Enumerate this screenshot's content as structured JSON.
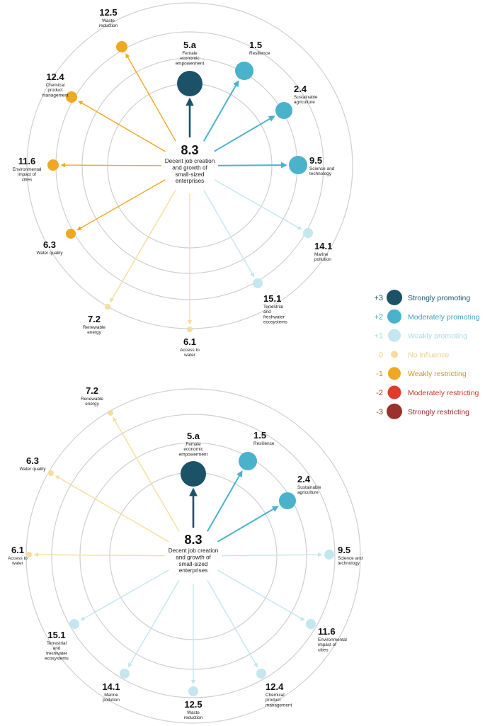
{
  "colors": {
    "ring": "#cfcfcf",
    "+3": "#1c5268",
    "+2": "#4ab2cb",
    "+1": "#c4e6ef",
    "0": "#f4de9e",
    "-1": "#efa822",
    "-2": "#e23a2a",
    "-3": "#9b312c"
  },
  "legend": [
    {
      "value": "+3",
      "label": "Strongly promoting",
      "color": "#1c5268",
      "text_color": "#1c5268"
    },
    {
      "value": "+2",
      "label": "Moderately promoting",
      "color": "#4ab2cb",
      "text_color": "#3aa3bd"
    },
    {
      "value": "+1",
      "label": "Weakly promoting",
      "color": "#c4e6ef",
      "text_color": "#a8dbe8"
    },
    {
      "value": "0",
      "label": "No influence",
      "color": "#f4de9e",
      "text_color": "#ecd08a"
    },
    {
      "value": "-1",
      "label": "Weakly restricting",
      "color": "#efa822",
      "text_color": "#d89416"
    },
    {
      "value": "-2",
      "label": "Moderately restricting",
      "color": "#e23a2a",
      "text_color": "#c9362a"
    },
    {
      "value": "-3",
      "label": "Strongly restricting",
      "color": "#9b312c",
      "text_color": "#8f2f2b"
    }
  ],
  "diagrams": [
    {
      "center": {
        "code": "8.3",
        "label": [
          "Decent job creation",
          "and growth of",
          "small-sized",
          "enterprises"
        ]
      },
      "targets": [
        {
          "code": "5.a",
          "label": [
            "Female",
            "economic",
            "empowerment"
          ],
          "score": 3
        },
        {
          "code": "1.5",
          "label": [
            "Resilience"
          ],
          "score": 2
        },
        {
          "code": "2.4",
          "label": [
            "Sustainable",
            "agriculture"
          ],
          "score": 2
        },
        {
          "code": "9.5",
          "label": [
            "Science and",
            "technology"
          ],
          "score": 2
        },
        {
          "code": "14.1",
          "label": [
            "Marine",
            "pollution"
          ],
          "score": 1
        },
        {
          "code": "15.1",
          "label": [
            "Terrestrial",
            "and",
            "freshwater",
            "ecosystems"
          ],
          "score": 1
        },
        {
          "code": "6.1",
          "label": [
            "Access to",
            "water"
          ],
          "score": 0
        },
        {
          "code": "7.2",
          "label": [
            "Renewable",
            "energy"
          ],
          "score": 0
        },
        {
          "code": "6.3",
          "label": [
            "Water quality"
          ],
          "score": -1
        },
        {
          "code": "11.6",
          "label": [
            "Environmental",
            "impact of",
            "cities"
          ],
          "score": -1
        },
        {
          "code": "12.4",
          "label": [
            "Chemical",
            "product",
            "management"
          ],
          "score": -1
        },
        {
          "code": "12.5",
          "label": [
            "Waste",
            "reduction"
          ],
          "score": -1
        }
      ]
    },
    {
      "center": {
        "code": "8.3",
        "label": [
          "Decent job creation",
          "and growth of",
          "small-sized",
          "enterprises"
        ]
      },
      "targets": [
        {
          "code": "5.a",
          "label": [
            "Female",
            "economic",
            "empowerment"
          ],
          "score": 3
        },
        {
          "code": "1.5",
          "label": [
            "Resilience"
          ],
          "score": 2
        },
        {
          "code": "2.4",
          "label": [
            "Sustainable",
            "agriculture"
          ],
          "score": 2
        },
        {
          "code": "9.5",
          "label": [
            "Science and",
            "technology"
          ],
          "score": 1
        },
        {
          "code": "11.6",
          "label": [
            "Environmental",
            "impact of",
            "cities"
          ],
          "score": 1
        },
        {
          "code": "12.4",
          "label": [
            "Chemical",
            "product",
            "management"
          ],
          "score": 1
        },
        {
          "code": "12.5",
          "label": [
            "Waste",
            "reduction"
          ],
          "score": 1
        },
        {
          "code": "14.1",
          "label": [
            "Marine",
            "pollution"
          ],
          "score": 1
        },
        {
          "code": "15.1",
          "label": [
            "Terrestrial",
            "and",
            "freshwater",
            "ecosystems"
          ],
          "score": 1
        },
        {
          "code": "6.1",
          "label": [
            "Access to",
            "water"
          ],
          "score": 0
        },
        {
          "code": "6.3",
          "label": [
            "Water quality"
          ],
          "score": 0
        },
        {
          "code": "7.2",
          "label": [
            "Renewable",
            "energy"
          ],
          "score": 0
        }
      ]
    }
  ]
}
